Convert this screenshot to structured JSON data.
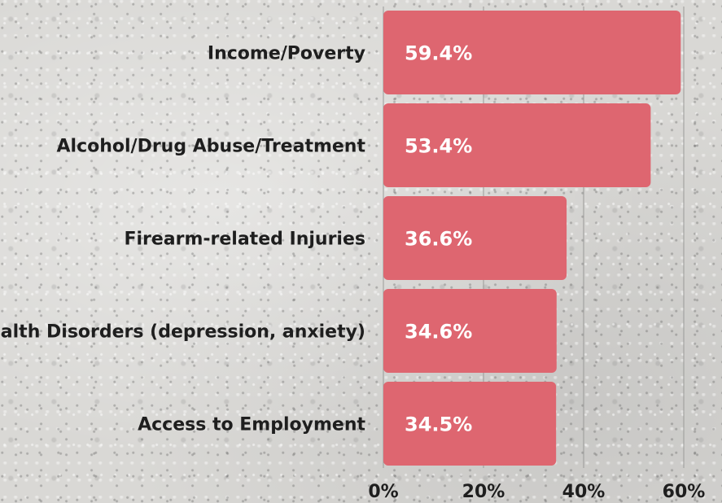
{
  "chart_data": {
    "type": "bar",
    "orientation": "horizontal",
    "categories": [
      "Income/Poverty",
      "Alcohol/Drug Abuse/Treatment",
      "Firearm-related Injuries",
      "Mental Health Disorders (depression, anxiety)",
      "Access to Employment"
    ],
    "values": [
      59.4,
      53.4,
      36.6,
      34.6,
      34.5
    ],
    "value_labels": [
      "59.4%",
      "53.4%",
      "36.6%",
      "34.6%",
      "34.5%"
    ],
    "x_ticks": [
      0,
      20,
      40,
      60
    ],
    "x_tick_labels": [
      "0%",
      "20%",
      "40%",
      "60%"
    ],
    "xlim": [
      0,
      60
    ],
    "grid": true,
    "bar_color": "#de6670",
    "value_label_color": "#ffffff",
    "text_color": "#1e1e1e"
  }
}
